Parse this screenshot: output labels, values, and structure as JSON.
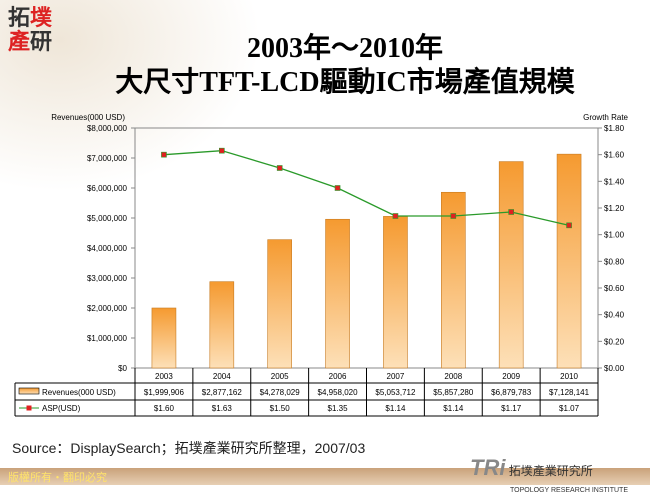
{
  "header": {
    "logo": "拓墣產研",
    "title_line1": "2003年～2010年",
    "title_line2": "大尺寸TFT-LCD驅動IC市場產值規模"
  },
  "chart_data": {
    "type": "bar+line",
    "categories": [
      "2003",
      "2004",
      "2005",
      "2006",
      "2007",
      "2008",
      "2009",
      "2010"
    ],
    "series": [
      {
        "name": "Revenues(000 USD)",
        "type": "bar",
        "axis": "left",
        "color": "#f7a84a",
        "values": [
          1999906,
          2877162,
          4278029,
          4958020,
          5053712,
          5857280,
          6879783,
          7128141
        ],
        "labels": [
          "$1,999,906",
          "$2,877,162",
          "$4,278,029",
          "$4,958,020",
          "$5,053,712",
          "$5,857,280",
          "$6,879,783",
          "$7,128,141"
        ]
      },
      {
        "name": "ASP(USD)",
        "type": "line",
        "axis": "right",
        "color": "#2a9a2a",
        "marker_color": "#e02020",
        "values": [
          1.6,
          1.63,
          1.5,
          1.35,
          1.14,
          1.14,
          1.17,
          1.07
        ],
        "labels": [
          "$1.60",
          "$1.63",
          "$1.50",
          "$1.35",
          "$1.14",
          "$1.14",
          "$1.17",
          "$1.07"
        ]
      }
    ],
    "ylabel_left": "Revenues(000 USD)",
    "ylabel_right": "Growth Rate",
    "ylim_left": [
      0,
      8000000
    ],
    "ylim_right": [
      0,
      1.8
    ],
    "yticks_left": [
      "$0",
      "$1,000,000",
      "$2,000,000",
      "$3,000,000",
      "$4,000,000",
      "$5,000,000",
      "$6,000,000",
      "$7,000,000",
      "$8,000,000"
    ],
    "yticks_right": [
      "$0.00",
      "$0.20",
      "$0.40",
      "$0.60",
      "$0.80",
      "$1.00",
      "$1.20",
      "$1.40",
      "$1.60",
      "$1.80"
    ],
    "grid": false,
    "legend": "data-table"
  },
  "source": "Source：DisplaySearch；拓墣產業研究所整理，2007/03",
  "footer": {
    "copyright": "版權所有・翻印必究",
    "brand": "TRi",
    "brand_name": "拓墣產業研究所",
    "brand_en": "TOPOLOGY RESEARCH INSTITUTE"
  }
}
